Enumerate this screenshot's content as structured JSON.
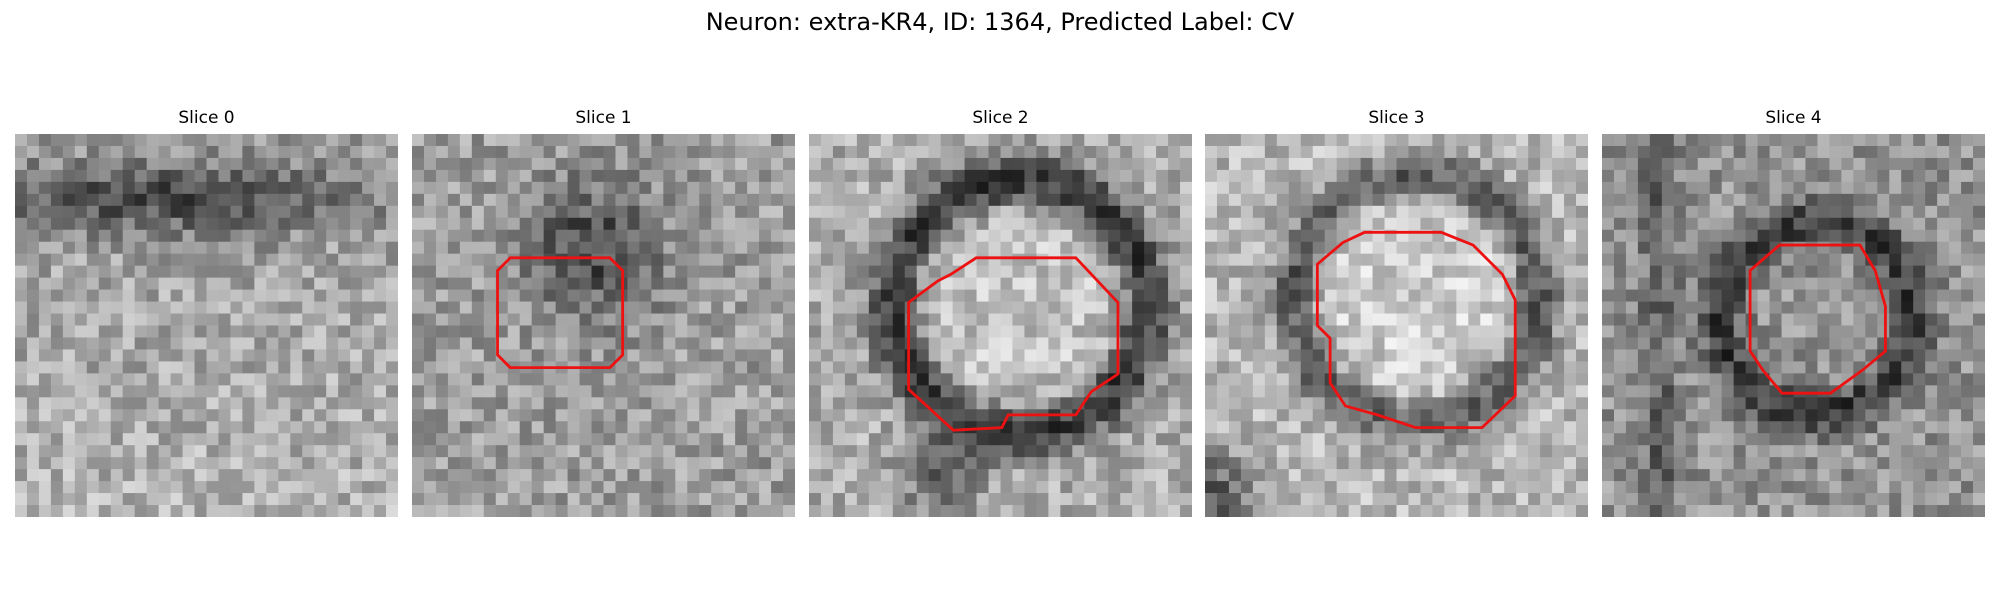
{
  "header": {
    "title": "Neuron: extra-KR4, ID: 1364, Predicted Label: CV"
  },
  "panels": [
    {
      "title": "Slice 0"
    },
    {
      "title": "Slice 1"
    },
    {
      "title": "Slice 2"
    },
    {
      "title": "Slice 3"
    },
    {
      "title": "Slice 4"
    }
  ]
}
